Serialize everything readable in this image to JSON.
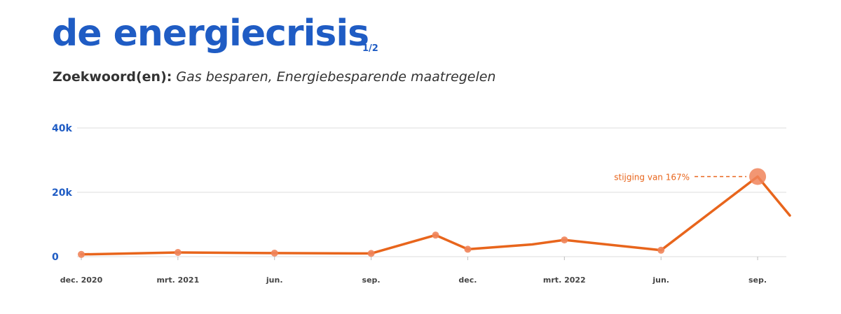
{
  "header": {
    "title": "de energiecrisis",
    "page_indicator": "1/2",
    "keywords_label": "Zoekwoord(en):",
    "keywords_value": "Gas besparen,  Energiebesparende maatregelen"
  },
  "colors": {
    "title": "#1f5cc4",
    "line": "#e8651c",
    "marker": "#f0845a",
    "grid": "#dcdcdc"
  },
  "chart_data": {
    "type": "line",
    "title": "",
    "xlabel": "",
    "ylabel": "",
    "ylim": [
      0,
      40000
    ],
    "y_ticks": [
      {
        "value": 0,
        "label": "0"
      },
      {
        "value": 20000,
        "label": "20k"
      },
      {
        "value": 40000,
        "label": "40k"
      }
    ],
    "x_tick_labels": [
      {
        "x": "2020-12",
        "label": "dec. 2020"
      },
      {
        "x": "2021-03",
        "label": "mrt. 2021"
      },
      {
        "x": "2021-06",
        "label": "jun."
      },
      {
        "x": "2021-09",
        "label": "sep."
      },
      {
        "x": "2021-12",
        "label": "dec."
      },
      {
        "x": "2022-03",
        "label": "mrt. 2022"
      },
      {
        "x": "2022-06",
        "label": "jun."
      },
      {
        "x": "2022-09",
        "label": "sep."
      }
    ],
    "x_range": [
      "2020-12",
      "2022-10"
    ],
    "grid": true,
    "series": [
      {
        "values": [
          {
            "x": "2020-12",
            "y": 700,
            "marker": true
          },
          {
            "x": "2021-03",
            "y": 1300,
            "marker": true
          },
          {
            "x": "2021-06",
            "y": 1100,
            "marker": true
          },
          {
            "x": "2021-09",
            "y": 1000,
            "marker": true
          },
          {
            "x": "2021-11",
            "y": 6700,
            "marker": true
          },
          {
            "x": "2021-12",
            "y": 2300,
            "marker": true
          },
          {
            "x": "2022-02",
            "y": 3800,
            "marker": false
          },
          {
            "x": "2022-03",
            "y": 5200,
            "marker": true
          },
          {
            "x": "2022-06",
            "y": 2000,
            "marker": true
          },
          {
            "x": "2022-09",
            "y": 24900,
            "marker": true,
            "highlight": true
          },
          {
            "x": "2022-10",
            "y": 12800,
            "marker": false
          }
        ]
      }
    ],
    "annotations": [
      {
        "text": "stijging van 167%",
        "x": "2022-09",
        "y": 24900
      }
    ]
  }
}
